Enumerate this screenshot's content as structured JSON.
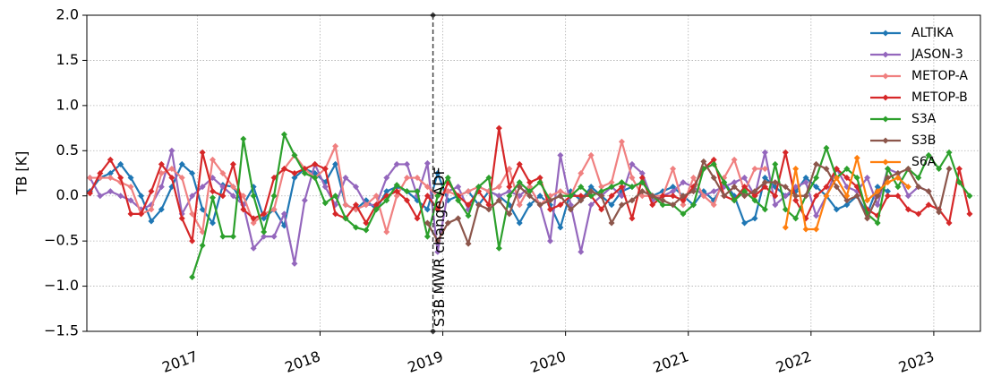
{
  "chart_data": {
    "type": "line",
    "y_label": "TB [K]",
    "xlim": [
      2016.1,
      2023.38
    ],
    "xticks": [
      2017,
      2018,
      2019,
      2020,
      2021,
      2022,
      2023
    ],
    "ylim": [
      -1.5,
      2.0
    ],
    "yticks": [
      {
        "value": -1.5,
        "label": "−1.5"
      },
      {
        "value": -1.0,
        "label": "−1.0"
      },
      {
        "value": -0.5,
        "label": "−0.5"
      },
      {
        "value": 0,
        "label": "0.0"
      },
      0.5,
      {
        "value": 1.0,
        "label": "1.0"
      },
      1.5,
      {
        "value": 2.0,
        "label": "2.0"
      }
    ],
    "grid": true,
    "legend": "upper right",
    "annotations": [
      {
        "text": "S3B MWR change ADF",
        "x": 2018.92
      }
    ],
    "x": [
      2016.125,
      2016.208,
      2016.292,
      2016.375,
      2016.458,
      2016.542,
      2016.625,
      2016.708,
      2016.792,
      2016.875,
      2016.958,
      2017.042,
      2017.125,
      2017.208,
      2017.292,
      2017.375,
      2017.458,
      2017.542,
      2017.625,
      2017.708,
      2017.792,
      2017.875,
      2017.958,
      2018.042,
      2018.125,
      2018.208,
      2018.292,
      2018.375,
      2018.458,
      2018.542,
      2018.625,
      2018.708,
      2018.792,
      2018.875,
      2018.958,
      2019.042,
      2019.125,
      2019.208,
      2019.292,
      2019.375,
      2019.458,
      2019.542,
      2019.625,
      2019.708,
      2019.792,
      2019.875,
      2019.958,
      2020.042,
      2020.125,
      2020.208,
      2020.292,
      2020.375,
      2020.458,
      2020.542,
      2020.625,
      2020.708,
      2020.792,
      2020.875,
      2020.958,
      2021.042,
      2021.125,
      2021.208,
      2021.292,
      2021.375,
      2021.458,
      2021.542,
      2021.625,
      2021.708,
      2021.792,
      2021.875,
      2021.958,
      2022.042,
      2022.125,
      2022.208,
      2022.292,
      2022.375,
      2022.458,
      2022.542,
      2022.625,
      2022.708,
      2022.792,
      2022.875,
      2022.958,
      2023.042,
      2023.125,
      2023.208,
      2023.292
    ],
    "series": [
      {
        "name": "ALTIKA",
        "color": "#1f77b4",
        "values": [
          0.05,
          0.2,
          0.25,
          0.35,
          0.2,
          0.0,
          -0.28,
          -0.15,
          0.1,
          0.35,
          0.25,
          -0.15,
          -0.3,
          0.12,
          0.1,
          -0.1,
          0.1,
          -0.25,
          -0.15,
          -0.33,
          0.2,
          0.3,
          0.25,
          0.15,
          0.35,
          -0.1,
          -0.15,
          -0.05,
          -0.15,
          0.05,
          0.1,
          0.05,
          -0.05,
          -0.15,
          0.25,
          -0.05,
          0.0,
          0.05,
          -0.1,
          0.05,
          0.0,
          -0.1,
          -0.3,
          -0.1,
          0.0,
          -0.1,
          -0.35,
          0.05,
          -0.05,
          0.1,
          0.0,
          -0.1,
          0.05,
          0.1,
          0.15,
          0.0,
          0.05,
          0.1,
          0.0,
          -0.1,
          0.05,
          -0.05,
          0.15,
          0.0,
          -0.3,
          -0.25,
          0.2,
          0.1,
          0.0,
          0.05,
          0.2,
          0.1,
          0.0,
          -0.15,
          -0.1,
          0.0,
          -0.2,
          0.1,
          0.05,
          null,
          null,
          null,
          null,
          null,
          null,
          null,
          null
        ]
      },
      {
        "name": "JASON-3",
        "color": "#9467bd",
        "values": [
          0.2,
          0.0,
          0.05,
          0.0,
          -0.05,
          -0.15,
          -0.1,
          0.1,
          0.5,
          -0.2,
          0.0,
          0.1,
          0.2,
          0.1,
          0.0,
          -0.1,
          -0.58,
          -0.45,
          -0.45,
          -0.2,
          -0.75,
          -0.05,
          0.35,
          0.1,
          -0.1,
          0.2,
          0.1,
          -0.1,
          -0.1,
          0.2,
          0.35,
          0.35,
          0.0,
          0.36,
          -0.62,
          0.05,
          0.1,
          -0.15,
          0.1,
          0.05,
          0.0,
          0.05,
          0.0,
          0.1,
          -0.1,
          -0.5,
          0.45,
          -0.1,
          -0.62,
          -0.1,
          0.0,
          0.1,
          0.0,
          0.35,
          0.25,
          -0.05,
          0.0,
          0.05,
          0.15,
          0.1,
          0.0,
          0.05,
          0.1,
          0.15,
          0.2,
          0.0,
          0.48,
          -0.1,
          0.0,
          0.1,
          0.15,
          -0.22,
          0.0,
          0.3,
          0.1,
          0.05,
          0.2,
          -0.1,
          0.3,
          0.25,
          0.0,
          0.1,
          0.05,
          null,
          null,
          null,
          null
        ]
      },
      {
        "name": "METOP-A",
        "color": "#f08080",
        "values": [
          0.2,
          0.2,
          0.2,
          0.15,
          0.1,
          -0.2,
          -0.15,
          0.25,
          0.3,
          0.2,
          -0.2,
          -0.4,
          0.4,
          0.25,
          0.1,
          0.0,
          -0.3,
          -0.2,
          -0.15,
          0.3,
          0.45,
          0.3,
          0.2,
          0.3,
          0.55,
          -0.1,
          -0.15,
          -0.1,
          0.0,
          -0.4,
          0.0,
          0.2,
          0.2,
          0.1,
          0.0,
          0.05,
          0.0,
          0.05,
          0.1,
          0.05,
          0.1,
          0.3,
          -0.1,
          0.1,
          -0.1,
          0.0,
          0.05,
          0.0,
          0.25,
          0.45,
          0.1,
          0.15,
          0.6,
          0.2,
          0.0,
          0.0,
          0.0,
          0.3,
          -0.1,
          0.2,
          0.0,
          -0.1,
          0.2,
          0.4,
          0.05,
          0.3,
          0.3,
          null,
          null,
          null,
          null,
          null,
          null,
          null,
          null,
          null,
          null,
          null,
          null,
          null,
          null,
          null,
          null,
          null,
          null,
          null,
          null
        ]
      },
      {
        "name": "METOP-B",
        "color": "#d62728",
        "values": [
          0.03,
          0.25,
          0.4,
          0.2,
          -0.2,
          -0.2,
          0.05,
          0.35,
          0.2,
          -0.25,
          -0.5,
          0.48,
          0.05,
          0.0,
          0.35,
          -0.15,
          -0.25,
          -0.2,
          0.2,
          0.3,
          0.25,
          0.3,
          0.35,
          0.3,
          -0.2,
          -0.25,
          -0.1,
          -0.3,
          -0.1,
          0.0,
          0.05,
          -0.05,
          -0.25,
          0.0,
          -0.15,
          0.15,
          0.0,
          -0.1,
          0.05,
          -0.1,
          0.75,
          0.1,
          0.35,
          0.15,
          0.2,
          -0.15,
          -0.1,
          0.0,
          0.0,
          0.0,
          -0.15,
          0.0,
          0.1,
          -0.25,
          0.2,
          -0.1,
          0.0,
          0.0,
          -0.05,
          0.1,
          0.3,
          0.4,
          0.0,
          -0.05,
          0.1,
          0.0,
          0.1,
          0.0,
          0.48,
          -0.05,
          -0.25,
          0.0,
          0.1,
          0.3,
          0.2,
          0.1,
          -0.15,
          -0.22,
          0.0,
          0.0,
          -0.15,
          -0.2,
          -0.1,
          -0.15,
          -0.3,
          0.3,
          -0.2
        ]
      },
      {
        "name": "S3A",
        "color": "#2ca02c",
        "values": [
          null,
          null,
          null,
          null,
          null,
          null,
          null,
          null,
          null,
          null,
          -0.9,
          -0.55,
          -0.02,
          -0.45,
          -0.45,
          0.63,
          0.0,
          -0.4,
          0.0,
          0.68,
          0.45,
          0.25,
          0.2,
          -0.08,
          0.0,
          -0.25,
          -0.35,
          -0.38,
          -0.15,
          -0.05,
          0.12,
          0.05,
          0.05,
          -0.45,
          0.0,
          0.2,
          -0.05,
          -0.22,
          0.1,
          0.2,
          -0.58,
          0.0,
          0.15,
          0.05,
          0.15,
          -0.05,
          0.0,
          0.0,
          0.1,
          0.0,
          0.05,
          0.1,
          0.15,
          0.1,
          0.15,
          0.0,
          -0.1,
          -0.1,
          -0.2,
          -0.1,
          0.3,
          0.35,
          0.15,
          -0.05,
          0.05,
          -0.05,
          -0.15,
          0.35,
          -0.15,
          -0.25,
          0.0,
          0.2,
          0.53,
          0.2,
          0.3,
          0.2,
          -0.2,
          -0.3,
          0.3,
          0.1,
          0.3,
          0.2,
          0.45,
          0.3,
          0.48,
          0.15,
          0.0
        ]
      },
      {
        "name": "S3B",
        "color": "#8c564b",
        "values": [
          null,
          null,
          null,
          null,
          null,
          null,
          null,
          null,
          null,
          null,
          null,
          null,
          null,
          null,
          null,
          null,
          null,
          null,
          null,
          null,
          null,
          null,
          null,
          null,
          null,
          null,
          null,
          null,
          null,
          null,
          null,
          null,
          null,
          -0.3,
          -0.5,
          -0.3,
          -0.25,
          -0.53,
          -0.1,
          -0.15,
          -0.05,
          -0.2,
          0.1,
          0.0,
          -0.1,
          -0.05,
          0.0,
          -0.15,
          -0.05,
          0.05,
          0.0,
          -0.3,
          -0.1,
          -0.05,
          0.05,
          0.0,
          -0.05,
          -0.1,
          0.0,
          0.05,
          0.38,
          0.2,
          0.0,
          0.1,
          0.0,
          0.05,
          0.15,
          0.15,
          0.1,
          0.0,
          0.0,
          0.35,
          0.3,
          0.1,
          -0.05,
          0.0,
          -0.25,
          0.0,
          0.2,
          0.25,
          0.3,
          0.1,
          0.05,
          -0.18,
          0.3,
          null,
          null
        ]
      },
      {
        "name": "S6A",
        "color": "#ff7f0e",
        "values": [
          null,
          null,
          null,
          null,
          null,
          null,
          null,
          null,
          null,
          null,
          null,
          null,
          null,
          null,
          null,
          null,
          null,
          null,
          null,
          null,
          null,
          null,
          null,
          null,
          null,
          null,
          null,
          null,
          null,
          null,
          null,
          null,
          null,
          null,
          null,
          null,
          null,
          null,
          null,
          null,
          null,
          null,
          null,
          null,
          null,
          null,
          null,
          null,
          null,
          null,
          null,
          null,
          null,
          null,
          null,
          null,
          null,
          null,
          null,
          null,
          null,
          null,
          null,
          null,
          null,
          null,
          null,
          null,
          -0.35,
          0.3,
          -0.37,
          -0.37,
          0.0,
          0.2,
          0.0,
          0.42,
          -0.05,
          0.05,
          0.15,
          0.2,
          0.1,
          null,
          null,
          null,
          null,
          null,
          null
        ]
      }
    ]
  }
}
